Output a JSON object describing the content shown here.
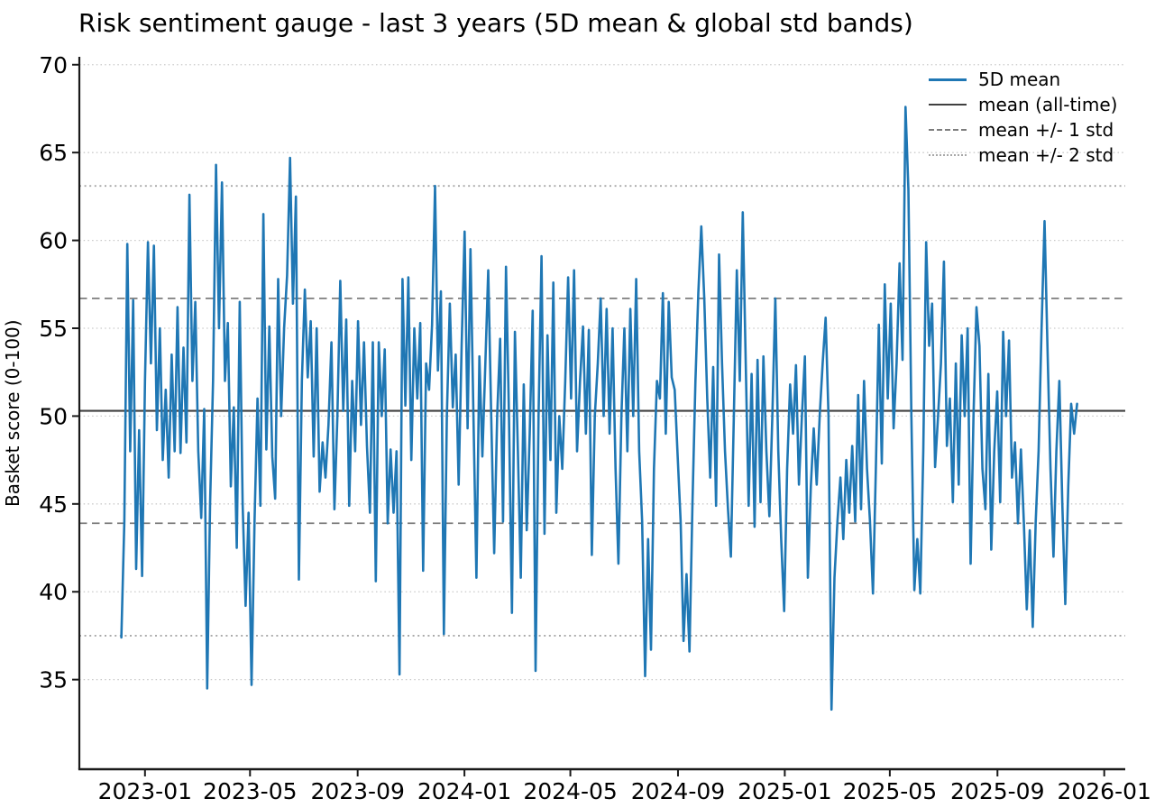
{
  "figure": {
    "title": "Risk sentiment gauge - last 3 years (5D mean & global std bands)",
    "background": "#ffffff"
  },
  "legend": {
    "items": [
      {
        "label": "5D mean",
        "style": "series"
      },
      {
        "label": "mean (all-time)",
        "style": "mean"
      },
      {
        "label": "mean +/- 1 std",
        "style": "std1"
      },
      {
        "label": "mean +/- 2 std",
        "style": "std2"
      }
    ]
  },
  "chart_data": {
    "type": "line",
    "title": "Risk sentiment gauge - last 3 years (5D mean & global std bands)",
    "xlabel": "",
    "ylabel": "Basket score (0-100)",
    "grid": "horizontal-dotted",
    "legend_position": "upper-right",
    "ylim": [
      29.9,
      70.45
    ],
    "yticks": [
      70,
      65,
      60,
      55,
      50,
      45,
      40,
      35
    ],
    "xlim_days": [
      -48,
      1147
    ],
    "x_start_date": "2022-12-05",
    "x_end_date": "2025-12-01",
    "series_days_span": 1092,
    "xticks": [
      {
        "label": "2023-01",
        "day": 27
      },
      {
        "label": "2023-05",
        "day": 147
      },
      {
        "label": "2023-09",
        "day": 270
      },
      {
        "label": "2024-01",
        "day": 392
      },
      {
        "label": "2024-05",
        "day": 513
      },
      {
        "label": "2024-09",
        "day": 636
      },
      {
        "label": "2025-01",
        "day": 758
      },
      {
        "label": "2025-05",
        "day": 878
      },
      {
        "label": "2025-09",
        "day": 1001
      },
      {
        "label": "2026-01",
        "day": 1123
      }
    ],
    "stats": {
      "mean_all_time": 50.3,
      "std_all_time": 6.4,
      "band_1std": [
        56.7,
        43.9
      ],
      "band_2std": [
        63.1,
        37.5
      ],
      "series_min": 33.3,
      "series_max": 67.6
    },
    "colors": {
      "series": "#1f77b4",
      "mean_line": "#404040",
      "std1_line": "#7d7d7d",
      "std2_line": "#a8a8a8",
      "grid": "#c9c9c9",
      "spine": "#1a1a1a",
      "text": "#000000"
    },
    "series": [
      {
        "name": "5D mean",
        "values": [
          37.4,
          44,
          59.8,
          48,
          56.6,
          41.3,
          49.2,
          40.9,
          52,
          59.9,
          53,
          59.7,
          49.2,
          55,
          47.5,
          51.5,
          46.5,
          53.5,
          48,
          56.2,
          47.9,
          53.9,
          48.5,
          62.6,
          52,
          56.5,
          48,
          44.2,
          50.4,
          34.5,
          45,
          52,
          64.3,
          55,
          63.3,
          52,
          55.3,
          46,
          50.5,
          42.5,
          56.5,
          45,
          39.2,
          44.5,
          34.7,
          44,
          51,
          44.9,
          61.5,
          48.1,
          55.1,
          47.7,
          45.3,
          57.8,
          50,
          55,
          58,
          64.7,
          56.4,
          62.5,
          40.7,
          52,
          57.2,
          52.2,
          55.4,
          47.7,
          55,
          45.7,
          48.5,
          46.5,
          49.5,
          54.2,
          44.7,
          50,
          57.7,
          50.3,
          55.5,
          44.9,
          52,
          48,
          55.4,
          49.5,
          54.2,
          48.3,
          44.5,
          54.2,
          40.6,
          54.2,
          50,
          53.8,
          43.9,
          48.1,
          44.5,
          48,
          35.3,
          57.8,
          50.6,
          57.9,
          47.5,
          55,
          51,
          55.3,
          41.2,
          53,
          51.5,
          55.2,
          63.1,
          52.6,
          57.1,
          37.6,
          50,
          56.4,
          50.5,
          53.5,
          46.1,
          54,
          60.5,
          49.3,
          59.5,
          50,
          40.8,
          53.4,
          47.7,
          53,
          58.3,
          50,
          42.2,
          50,
          54.4,
          44,
          58.5,
          50,
          38.8,
          54.8,
          48,
          40.8,
          51.8,
          43.5,
          49,
          56,
          35.5,
          50,
          59.1,
          43.3,
          54.6,
          47.5,
          57.6,
          44.5,
          50,
          47,
          52,
          57.9,
          51,
          58.3,
          48,
          52,
          55.1,
          49,
          54.9,
          42.1,
          50,
          53,
          56.7,
          50,
          56.1,
          49,
          55,
          47,
          41.6,
          50,
          55,
          48,
          56.1,
          50,
          57.8,
          48,
          44,
          35.2,
          43,
          36.7,
          47,
          52,
          51,
          57,
          49,
          56.5,
          52.2,
          51.5,
          47.7,
          44,
          37.2,
          41,
          36.6,
          45,
          52,
          57,
          60.8,
          56.7,
          51,
          46.5,
          52.8,
          44.9,
          59.2,
          53,
          48,
          44.7,
          42,
          50,
          58.3,
          52,
          61.6,
          53,
          44.9,
          52.4,
          43.7,
          53.2,
          45.1,
          53.4,
          48,
          44.3,
          50,
          56.7,
          48,
          43,
          38.9,
          47,
          51.8,
          49,
          52.9,
          46.1,
          50,
          53.4,
          40.8,
          46,
          49.3,
          46.1,
          50,
          53,
          55.6,
          50,
          33.3,
          40.8,
          44,
          46.5,
          43,
          47.5,
          44.5,
          48.3,
          44,
          51.2,
          44.7,
          52,
          47,
          44,
          39.9,
          47,
          55.2,
          47.3,
          57.5,
          51,
          56.4,
          49.3,
          53,
          58.7,
          53.2,
          67.6,
          62.9,
          50,
          40.1,
          43,
          39.9,
          48,
          59.9,
          54,
          56.4,
          47.1,
          50,
          53,
          58.8,
          48.3,
          51,
          45.1,
          53,
          46.1,
          54.6,
          50,
          55,
          41.6,
          50,
          56.2,
          54,
          47,
          44.7,
          52.4,
          42.4,
          48,
          51.4,
          45.1,
          54.8,
          50,
          54.3,
          46.5,
          48.5,
          43.9,
          48.1,
          44,
          39,
          43.5,
          38,
          44,
          48,
          55,
          61.1,
          53.8,
          47,
          42,
          48,
          52,
          45,
          39.3,
          46,
          50.7,
          49,
          50.7
        ]
      }
    ]
  }
}
